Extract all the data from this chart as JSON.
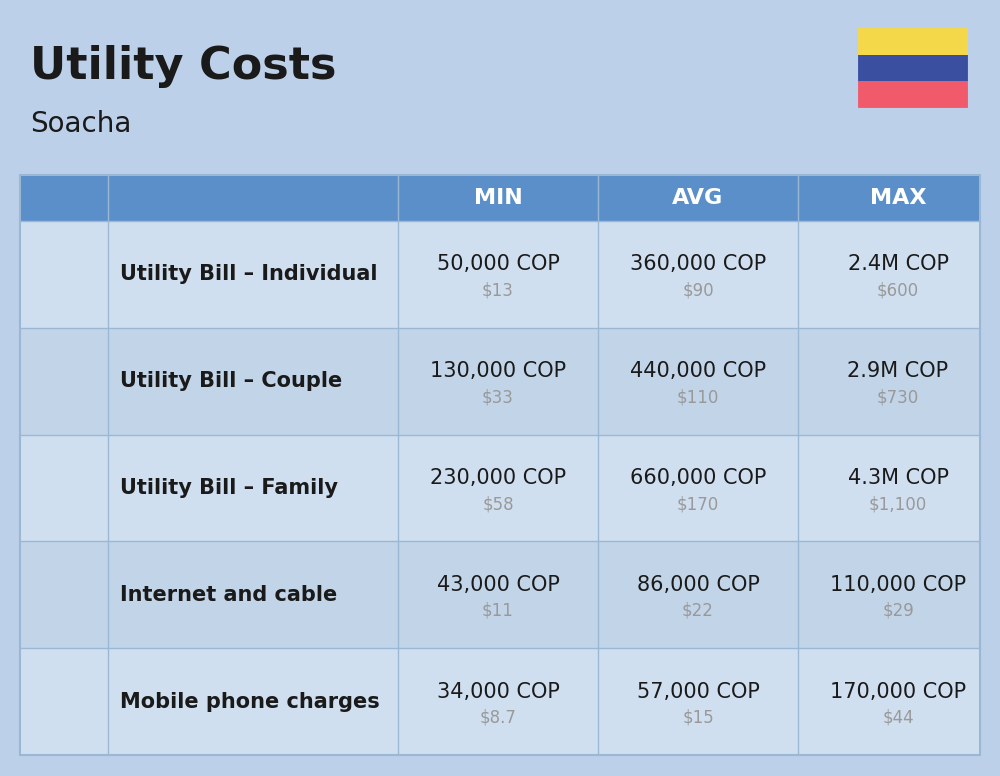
{
  "title": "Utility Costs",
  "subtitle": "Soacha",
  "background_color": "#bdd0e9",
  "header_bg_color": "#5b8fc9",
  "header_text_color": "#ffffff",
  "row_bg_color_1": "#d0dff0",
  "row_bg_color_2": "#c2d4e8",
  "row_divider_color": "#9ab8d4",
  "columns": [
    "MIN",
    "AVG",
    "MAX"
  ],
  "rows": [
    {
      "label": "Utility Bill – Individual",
      "min_cop": "50,000 COP",
      "min_usd": "$13",
      "avg_cop": "360,000 COP",
      "avg_usd": "$90",
      "max_cop": "2.4M COP",
      "max_usd": "$600"
    },
    {
      "label": "Utility Bill – Couple",
      "min_cop": "130,000 COP",
      "min_usd": "$33",
      "avg_cop": "440,000 COP",
      "avg_usd": "$110",
      "max_cop": "2.9M COP",
      "max_usd": "$730"
    },
    {
      "label": "Utility Bill – Family",
      "min_cop": "230,000 COP",
      "min_usd": "$58",
      "avg_cop": "660,000 COP",
      "avg_usd": "$170",
      "max_cop": "4.3M COP",
      "max_usd": "$1,100"
    },
    {
      "label": "Internet and cable",
      "min_cop": "43,000 COP",
      "min_usd": "$11",
      "avg_cop": "86,000 COP",
      "avg_usd": "$22",
      "max_cop": "110,000 COP",
      "max_usd": "$29"
    },
    {
      "label": "Mobile phone charges",
      "min_cop": "34,000 COP",
      "min_usd": "$8.7",
      "avg_cop": "57,000 COP",
      "avg_usd": "$15",
      "max_cop": "170,000 COP",
      "max_usd": "$44"
    }
  ],
  "flag_colors": [
    "#f5d84a",
    "#3a4fa0",
    "#f05a6a"
  ],
  "title_fontsize": 32,
  "subtitle_fontsize": 20,
  "header_fontsize": 16,
  "label_fontsize": 15,
  "value_fontsize": 15,
  "usd_fontsize": 12,
  "usd_color": "#999999",
  "text_color": "#1a1a1a"
}
